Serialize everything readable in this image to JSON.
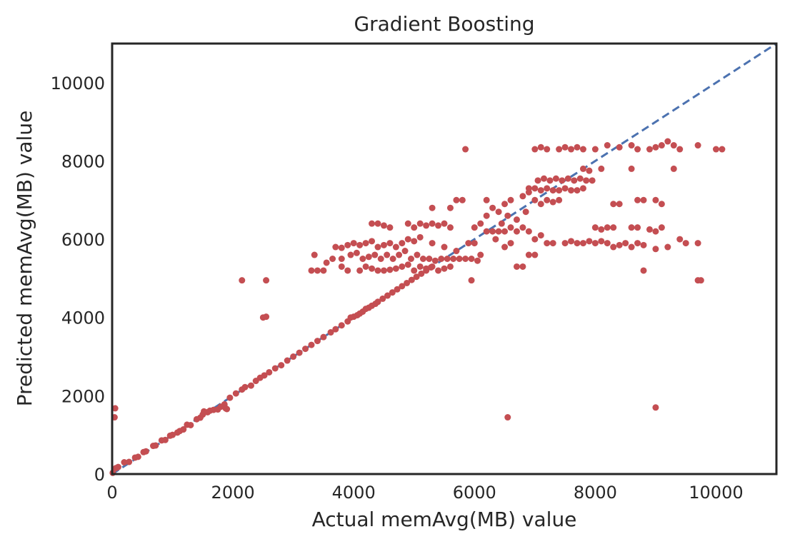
{
  "chart_data": {
    "type": "scatter",
    "title": "Gradient Boosting",
    "xlabel": "Actual memAvg(MB) value",
    "ylabel": "Predicted memAvg(MB) value",
    "xlim": [
      0,
      11000
    ],
    "ylim": [
      0,
      11000
    ],
    "xticks": [
      0,
      2000,
      4000,
      6000,
      8000,
      10000
    ],
    "yticks": [
      0,
      2000,
      4000,
      6000,
      8000,
      10000
    ],
    "xtick_labels": [
      "0",
      "2000",
      "4000",
      "6000",
      "8000",
      "10000"
    ],
    "ytick_labels": [
      "0",
      "2000",
      "4000",
      "6000",
      "8000",
      "10000"
    ],
    "grid": false,
    "reference_line": {
      "style": "dashed",
      "color": "#4c72b0",
      "from": [
        0,
        0
      ],
      "to": [
        11000,
        11000
      ]
    },
    "marker_color": "#c44e52",
    "points": [
      [
        10,
        30
      ],
      [
        60,
        150
      ],
      [
        100,
        180
      ],
      [
        40,
        1450
      ],
      [
        50,
        1680
      ],
      [
        200,
        300
      ],
      [
        280,
        310
      ],
      [
        380,
        420
      ],
      [
        430,
        440
      ],
      [
        520,
        560
      ],
      [
        560,
        580
      ],
      [
        680,
        720
      ],
      [
        720,
        730
      ],
      [
        820,
        860
      ],
      [
        880,
        870
      ],
      [
        960,
        980
      ],
      [
        1000,
        1000
      ],
      [
        1080,
        1060
      ],
      [
        1120,
        1100
      ],
      [
        1180,
        1140
      ],
      [
        1240,
        1260
      ],
      [
        1300,
        1250
      ],
      [
        1400,
        1400
      ],
      [
        1460,
        1440
      ],
      [
        1500,
        1520
      ],
      [
        1520,
        1600
      ],
      [
        1580,
        1580
      ],
      [
        1620,
        1620
      ],
      [
        1680,
        1640
      ],
      [
        1750,
        1650
      ],
      [
        1800,
        1720
      ],
      [
        1860,
        1780
      ],
      [
        1880,
        1680
      ],
      [
        1900,
        1660
      ],
      [
        1950,
        1950
      ],
      [
        2050,
        2060
      ],
      [
        2150,
        2160
      ],
      [
        2200,
        2220
      ],
      [
        2300,
        2260
      ],
      [
        2380,
        2380
      ],
      [
        2450,
        2460
      ],
      [
        2520,
        2520
      ],
      [
        2600,
        2600
      ],
      [
        2700,
        2700
      ],
      [
        2800,
        2780
      ],
      [
        2900,
        2900
      ],
      [
        3000,
        3000
      ],
      [
        3100,
        3100
      ],
      [
        3200,
        3200
      ],
      [
        3300,
        3300
      ],
      [
        3400,
        3400
      ],
      [
        3500,
        3500
      ],
      [
        3620,
        3620
      ],
      [
        3700,
        3700
      ],
      [
        3800,
        3800
      ],
      [
        3900,
        3900
      ],
      [
        3950,
        4000
      ],
      [
        4000,
        4020
      ],
      [
        4060,
        4060
      ],
      [
        4100,
        4100
      ],
      [
        4150,
        4150
      ],
      [
        4200,
        4220
      ],
      [
        4250,
        4250
      ],
      [
        4300,
        4300
      ],
      [
        4360,
        4350
      ],
      [
        4400,
        4400
      ],
      [
        4480,
        4480
      ],
      [
        4560,
        4560
      ],
      [
        4640,
        4640
      ],
      [
        4720,
        4720
      ],
      [
        4800,
        4800
      ],
      [
        4880,
        4880
      ],
      [
        4960,
        4960
      ],
      [
        5040,
        5040
      ],
      [
        5120,
        5120
      ],
      [
        5200,
        5200
      ],
      [
        5280,
        5280
      ],
      [
        2150,
        4950
      ],
      [
        2550,
        4950
      ],
      [
        2550,
        4020
      ],
      [
        2500,
        4000
      ],
      [
        3300,
        5200
      ],
      [
        3400,
        5200
      ],
      [
        3500,
        5200
      ],
      [
        3350,
        5600
      ],
      [
        3550,
        5400
      ],
      [
        3650,
        5500
      ],
      [
        3800,
        5300
      ],
      [
        3900,
        5200
      ],
      [
        4100,
        5200
      ],
      [
        4200,
        5300
      ],
      [
        4300,
        5250
      ],
      [
        4400,
        5200
      ],
      [
        4500,
        5200
      ],
      [
        4600,
        5220
      ],
      [
        4700,
        5250
      ],
      [
        4800,
        5300
      ],
      [
        4900,
        5350
      ],
      [
        5000,
        5200
      ],
      [
        5100,
        5300
      ],
      [
        5200,
        5250
      ],
      [
        5300,
        5300
      ],
      [
        5400,
        5200
      ],
      [
        5500,
        5250
      ],
      [
        5600,
        5300
      ],
      [
        3700,
        5800
      ],
      [
        3800,
        5780
      ],
      [
        3900,
        5850
      ],
      [
        4000,
        5900
      ],
      [
        4100,
        5850
      ],
      [
        4200,
        5900
      ],
      [
        4300,
        5950
      ],
      [
        4400,
        5800
      ],
      [
        4500,
        5850
      ],
      [
        4600,
        5900
      ],
      [
        4700,
        5800
      ],
      [
        4800,
        5900
      ],
      [
        4900,
        6000
      ],
      [
        5000,
        5950
      ],
      [
        5100,
        6050
      ],
      [
        3800,
        5500
      ],
      [
        3950,
        5600
      ],
      [
        4050,
        5650
      ],
      [
        4150,
        5500
      ],
      [
        4250,
        5550
      ],
      [
        4350,
        5600
      ],
      [
        4450,
        5500
      ],
      [
        4550,
        5600
      ],
      [
        4650,
        5500
      ],
      [
        4750,
        5600
      ],
      [
        4850,
        5700
      ],
      [
        4950,
        5500
      ],
      [
        5050,
        5600
      ],
      [
        5150,
        5500
      ],
      [
        5250,
        5500
      ],
      [
        5350,
        5450
      ],
      [
        5450,
        5500
      ],
      [
        5550,
        5500
      ],
      [
        5650,
        5500
      ],
      [
        5750,
        5500
      ],
      [
        5850,
        5500
      ],
      [
        5950,
        5500
      ],
      [
        6050,
        5450
      ],
      [
        4300,
        6400
      ],
      [
        4400,
        6400
      ],
      [
        4500,
        6350
      ],
      [
        4600,
        6300
      ],
      [
        4900,
        6400
      ],
      [
        5000,
        6300
      ],
      [
        5100,
        6400
      ],
      [
        5200,
        6350
      ],
      [
        5300,
        6400
      ],
      [
        5400,
        6350
      ],
      [
        5500,
        6400
      ],
      [
        5600,
        6300
      ],
      [
        5300,
        6800
      ],
      [
        5600,
        6800
      ],
      [
        5300,
        5900
      ],
      [
        5500,
        5800
      ],
      [
        5700,
        5700
      ],
      [
        5900,
        5900
      ],
      [
        6000,
        5900
      ],
      [
        5700,
        7000
      ],
      [
        5800,
        7000
      ],
      [
        5850,
        8300
      ],
      [
        5950,
        4950
      ],
      [
        6100,
        5600
      ],
      [
        6000,
        6300
      ],
      [
        6100,
        6400
      ],
      [
        6200,
        6200
      ],
      [
        6300,
        6200
      ],
      [
        6400,
        6200
      ],
      [
        6500,
        6200
      ],
      [
        6600,
        6300
      ],
      [
        6700,
        6200
      ],
      [
        6800,
        6300
      ],
      [
        6900,
        6200
      ],
      [
        6200,
        7000
      ],
      [
        6300,
        6800
      ],
      [
        6400,
        6700
      ],
      [
        6500,
        6900
      ],
      [
        6600,
        7000
      ],
      [
        6350,
        6000
      ],
      [
        6500,
        5800
      ],
      [
        6600,
        5900
      ],
      [
        6700,
        5300
      ],
      [
        6800,
        5300
      ],
      [
        6200,
        6600
      ],
      [
        6450,
        6400
      ],
      [
        6550,
        6600
      ],
      [
        6700,
        6500
      ],
      [
        6850,
        6700
      ],
      [
        6550,
        1450
      ],
      [
        6900,
        5600
      ],
      [
        7000,
        5600
      ],
      [
        7000,
        6000
      ],
      [
        7100,
        6100
      ],
      [
        7200,
        5900
      ],
      [
        6800,
        7100
      ],
      [
        6900,
        7200
      ],
      [
        7000,
        7000
      ],
      [
        7100,
        6900
      ],
      [
        7200,
        7000
      ],
      [
        7300,
        6950
      ],
      [
        7400,
        7000
      ],
      [
        6900,
        7300
      ],
      [
        7000,
        7300
      ],
      [
        7100,
        7250
      ],
      [
        7200,
        7300
      ],
      [
        7300,
        7250
      ],
      [
        7400,
        7250
      ],
      [
        7500,
        7300
      ],
      [
        7600,
        7250
      ],
      [
        7700,
        7250
      ],
      [
        7800,
        7300
      ],
      [
        7050,
        7500
      ],
      [
        7150,
        7550
      ],
      [
        7250,
        7500
      ],
      [
        7350,
        7550
      ],
      [
        7450,
        7500
      ],
      [
        7550,
        7550
      ],
      [
        7650,
        7500
      ],
      [
        7750,
        7550
      ],
      [
        7850,
        7500
      ],
      [
        7950,
        7500
      ],
      [
        7800,
        7800
      ],
      [
        7900,
        7750
      ],
      [
        8100,
        7800
      ],
      [
        7000,
        8300
      ],
      [
        7100,
        8350
      ],
      [
        7200,
        8300
      ],
      [
        7400,
        8300
      ],
      [
        7500,
        8350
      ],
      [
        7600,
        8300
      ],
      [
        7700,
        8350
      ],
      [
        7800,
        8300
      ],
      [
        8000,
        8300
      ],
      [
        8200,
        8400
      ],
      [
        8400,
        8350
      ],
      [
        8600,
        8400
      ],
      [
        8700,
        8300
      ],
      [
        7300,
        5900
      ],
      [
        7500,
        5900
      ],
      [
        7600,
        5950
      ],
      [
        7700,
        5900
      ],
      [
        7800,
        5900
      ],
      [
        7900,
        5950
      ],
      [
        8000,
        5900
      ],
      [
        8100,
        5950
      ],
      [
        8200,
        5900
      ],
      [
        8300,
        5800
      ],
      [
        8400,
        5850
      ],
      [
        8500,
        5900
      ],
      [
        8600,
        5800
      ],
      [
        8700,
        5900
      ],
      [
        8800,
        5850
      ],
      [
        8000,
        6300
      ],
      [
        8100,
        6250
      ],
      [
        8200,
        6300
      ],
      [
        8300,
        6300
      ],
      [
        8600,
        6300
      ],
      [
        8700,
        6300
      ],
      [
        8900,
        6250
      ],
      [
        9000,
        6200
      ],
      [
        9100,
        6300
      ],
      [
        8300,
        6900
      ],
      [
        8400,
        6900
      ],
      [
        8700,
        7000
      ],
      [
        8800,
        7000
      ],
      [
        9000,
        7000
      ],
      [
        9100,
        6900
      ],
      [
        8600,
        7800
      ],
      [
        9300,
        7800
      ],
      [
        8800,
        5200
      ],
      [
        8900,
        8300
      ],
      [
        9000,
        8350
      ],
      [
        9100,
        8400
      ],
      [
        9200,
        8500
      ],
      [
        9300,
        8400
      ],
      [
        9400,
        8300
      ],
      [
        9700,
        8400
      ],
      [
        10000,
        8300
      ],
      [
        10100,
        8300
      ],
      [
        9000,
        1700
      ],
      [
        9400,
        6000
      ],
      [
        9500,
        5900
      ],
      [
        9700,
        5900
      ],
      [
        9200,
        5800
      ],
      [
        9700,
        4950
      ],
      [
        9750,
        4950
      ],
      [
        9000,
        5750
      ]
    ]
  }
}
